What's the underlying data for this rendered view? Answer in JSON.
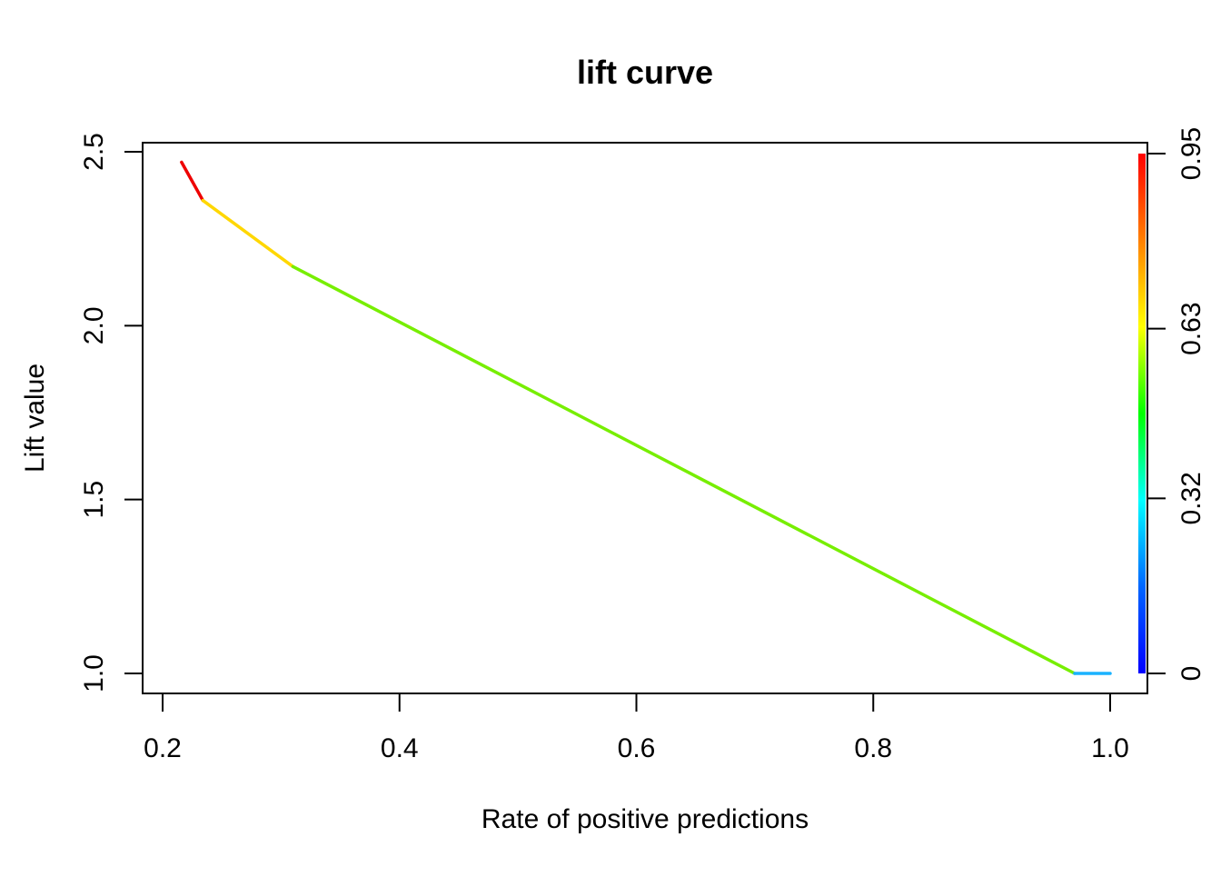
{
  "chart_data": {
    "type": "line",
    "title": "lift curve",
    "xlabel": "Rate of positive predictions",
    "ylabel": "Lift value",
    "xlim": [
      0.2,
      1.0
    ],
    "ylim": [
      1.0,
      2.5
    ],
    "x_ticks": [
      0.2,
      0.4,
      0.6,
      0.8,
      1.0
    ],
    "x_tick_labels": [
      "0.2",
      "0.4",
      "0.6",
      "0.8",
      "1.0"
    ],
    "y_ticks": [
      1.0,
      1.5,
      2.0,
      2.5
    ],
    "y_tick_labels": [
      "1.0",
      "1.5",
      "2.0",
      "2.5"
    ],
    "series": [
      {
        "segments": [
          {
            "x": [
              0.216,
              0.234
            ],
            "y": [
              2.47,
              2.36
            ],
            "color": "#ee0000"
          },
          {
            "x": [
              0.234,
              0.31
            ],
            "y": [
              2.36,
              2.17
            ],
            "color": "#ffd700"
          },
          {
            "x": [
              0.31,
              0.97
            ],
            "y": [
              2.17,
              1.0
            ],
            "color": "#77ee00"
          },
          {
            "x": [
              0.97,
              1.0
            ],
            "y": [
              1.0,
              1.0
            ],
            "color": "#1ab2ff"
          }
        ]
      }
    ],
    "colorbar": {
      "range": [
        0,
        0.95
      ],
      "ticks": [
        0,
        0.32,
        0.63,
        0.95
      ],
      "tick_labels": [
        "0",
        "0.32",
        "0.63",
        "0.95"
      ],
      "colors": [
        "#0000ff",
        "#0066ff",
        "#00ffff",
        "#00ff00",
        "#ffff00",
        "#ff8000",
        "#ff0000"
      ]
    },
    "grid": false,
    "legend": "none"
  }
}
